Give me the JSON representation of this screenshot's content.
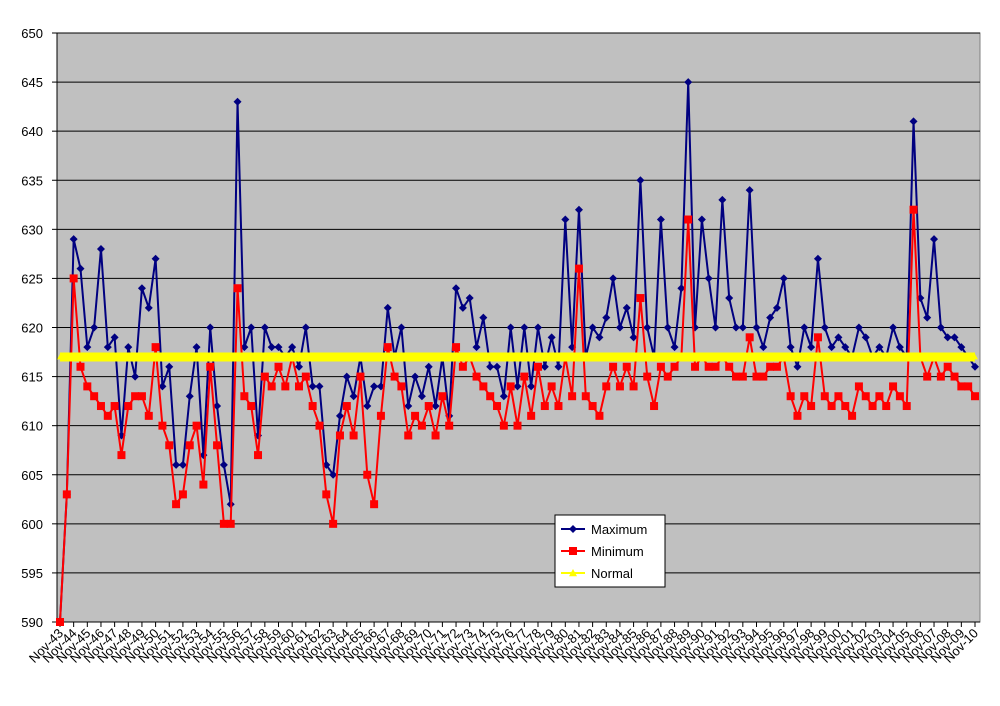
{
  "chart_data": {
    "type": "line",
    "categories": [
      "Nov-43",
      null,
      "Nov-44",
      null,
      "Nov-45",
      null,
      "Nov-46",
      null,
      "Nov-47",
      null,
      "Nov-48",
      null,
      "Nov-49",
      null,
      "Nov-50",
      null,
      "Nov-51",
      null,
      "Nov-52",
      null,
      "Nov-53",
      null,
      "Nov-54",
      null,
      "Nov-55",
      null,
      "Nov-56",
      null,
      "Nov-57",
      null,
      "Nov-58",
      null,
      "Nov-59",
      null,
      "Nov-60",
      null,
      "Nov-61",
      null,
      "Nov-62",
      null,
      "Nov-63",
      null,
      "Nov-64",
      null,
      "Nov-65",
      null,
      "Nov-66",
      null,
      "Nov-67",
      null,
      "Nov-68",
      null,
      "Nov-69",
      null,
      "Nov-70",
      null,
      "Nov-71",
      null,
      "Nov-72",
      null,
      "Nov-73",
      null,
      "Nov-74",
      null,
      "Nov-75",
      null,
      "Nov-76",
      null,
      "Nov-77",
      null,
      "Nov-78",
      null,
      "Nov-79",
      null,
      "Nov-80",
      null,
      "Nov-81",
      null,
      "Nov-82",
      null,
      "Nov-83",
      null,
      "Nov-84",
      null,
      "Nov-85",
      null,
      "Nov-86",
      null,
      "Nov-87",
      null,
      "Nov-88",
      null,
      "Nov-89",
      null,
      "Nov-90",
      null,
      "Nov-91",
      null,
      "Nov-92",
      null,
      "Nov-93",
      null,
      "Nov-94",
      null,
      "Nov-95",
      null,
      "Nov-96",
      null,
      "Nov-97",
      null,
      "Nov-98",
      null,
      "Nov-99",
      null,
      "Nov-00",
      null,
      "Nov-01",
      null,
      "Nov-02",
      null,
      "Nov-03",
      null,
      "Nov-04",
      null,
      "Nov-05",
      null,
      "Nov-06",
      null,
      "Nov-07",
      null,
      "Nov-08",
      null,
      "Nov-09",
      null,
      "Nov-10"
    ],
    "series": [
      {
        "name": "Maximum",
        "color": "#000080",
        "marker": "diamond",
        "values": [
          590,
          603,
          629,
          626,
          618,
          620,
          628,
          618,
          619,
          609,
          618,
          615,
          624,
          622,
          627,
          614,
          616,
          606,
          606,
          613,
          618,
          607,
          620,
          612,
          606,
          602,
          643,
          618,
          620,
          609,
          620,
          618,
          618,
          617,
          618,
          616,
          620,
          614,
          614,
          606,
          605,
          611,
          615,
          613,
          617,
          612,
          614,
          614,
          622,
          617,
          620,
          612,
          615,
          613,
          616,
          612,
          617,
          611,
          624,
          622,
          623,
          618,
          621,
          616,
          616,
          613,
          620,
          614,
          620,
          614,
          620,
          616,
          619,
          616,
          631,
          618,
          632,
          617,
          620,
          619,
          621,
          625,
          620,
          622,
          619,
          635,
          620,
          617,
          631,
          620,
          618,
          624,
          645,
          620,
          631,
          625,
          620,
          633,
          623,
          620,
          620,
          634,
          620,
          618,
          621,
          622,
          625,
          618,
          616,
          620,
          618,
          627,
          620,
          618,
          619,
          618,
          617,
          620,
          619,
          617,
          618,
          617,
          620,
          618,
          617,
          641,
          623,
          621,
          629,
          620,
          619,
          619,
          618,
          617,
          616
        ]
      },
      {
        "name": "Minimum",
        "color": "#ff0000",
        "marker": "square",
        "values": [
          590,
          603,
          625,
          616,
          614,
          613,
          612,
          611,
          612,
          607,
          612,
          613,
          613,
          611,
          618,
          610,
          608,
          602,
          603,
          608,
          610,
          604,
          616,
          608,
          600,
          600,
          624,
          613,
          612,
          607,
          615,
          614,
          616,
          614,
          617,
          614,
          615,
          612,
          610,
          603,
          600,
          609,
          612,
          609,
          615,
          605,
          602,
          611,
          618,
          615,
          614,
          609,
          611,
          610,
          612,
          609,
          613,
          610,
          618,
          616,
          617,
          615,
          614,
          613,
          612,
          610,
          614,
          610,
          615,
          611,
          616,
          612,
          614,
          612,
          617,
          613,
          626,
          613,
          612,
          611,
          614,
          616,
          614,
          616,
          614,
          623,
          615,
          612,
          616,
          615,
          616,
          617,
          631,
          616,
          617,
          616,
          616,
          617,
          616,
          615,
          615,
          619,
          615,
          615,
          616,
          616,
          617,
          613,
          611,
          613,
          612,
          619,
          613,
          612,
          613,
          612,
          611,
          614,
          613,
          612,
          613,
          612,
          614,
          613,
          612,
          632,
          617,
          615,
          617,
          615,
          616,
          615,
          614,
          614,
          613
        ]
      },
      {
        "name": "Normal",
        "color": "#ffff00",
        "marker": "triangle",
        "values": [
          617,
          617,
          617,
          617,
          617,
          617,
          617,
          617,
          617,
          617,
          617,
          617,
          617,
          617,
          617,
          617,
          617,
          617,
          617,
          617,
          617,
          617,
          617,
          617,
          617,
          617,
          617,
          617,
          617,
          617,
          617,
          617,
          617,
          617,
          617,
          617,
          617,
          617,
          617,
          617,
          617,
          617,
          617,
          617,
          617,
          617,
          617,
          617,
          617,
          617,
          617,
          617,
          617,
          617,
          617,
          617,
          617,
          617,
          617,
          617,
          617,
          617,
          617,
          617,
          617,
          617,
          617,
          617,
          617,
          617,
          617,
          617,
          617,
          617,
          617,
          617,
          617,
          617,
          617,
          617,
          617,
          617,
          617,
          617,
          617,
          617,
          617,
          617,
          617,
          617,
          617,
          617,
          617,
          617,
          617,
          617,
          617,
          617,
          617,
          617,
          617,
          617,
          617,
          617,
          617,
          617,
          617,
          617,
          617,
          617,
          617,
          617,
          617,
          617,
          617,
          617,
          617,
          617,
          617,
          617,
          617,
          617,
          617,
          617,
          617,
          617,
          617,
          617,
          617,
          617,
          617,
          617,
          617,
          617,
          617
        ]
      }
    ],
    "ylim": [
      590,
      650
    ],
    "yticks": [
      590,
      595,
      600,
      605,
      610,
      615,
      620,
      625,
      630,
      635,
      640,
      645,
      650
    ],
    "grid": true,
    "legend": "inside-bottom-center"
  }
}
